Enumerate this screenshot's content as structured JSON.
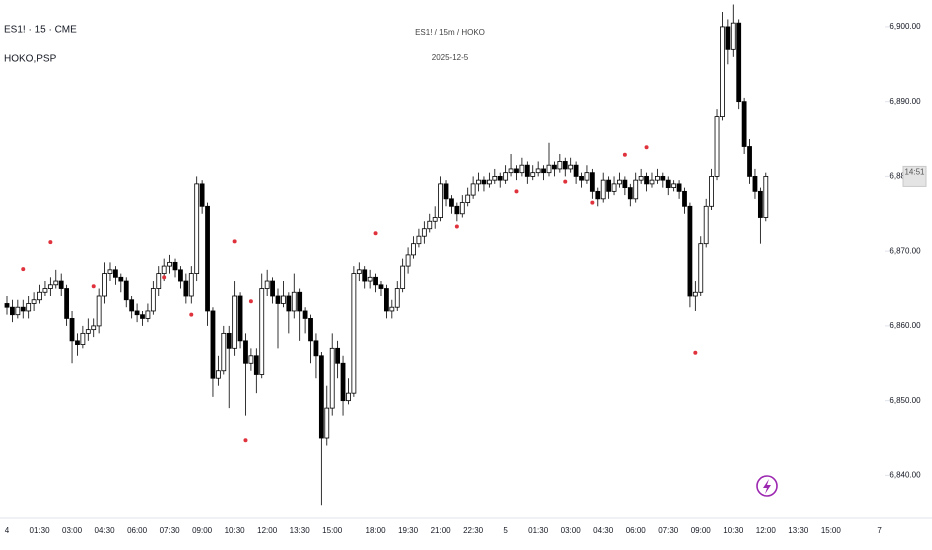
{
  "chart_data": {
    "type": "candlestick",
    "symbol": "ES1! · 15 · CME",
    "indicator": "HOKO,PSP",
    "title": "ES1! / 15m / HOKO",
    "subtitle": "2025-12-5",
    "countdown": "14:51",
    "ylim": [
      6834.3,
      6903.6
    ],
    "yticks": [
      {
        "value": 6840,
        "label": "6,840.00"
      },
      {
        "value": 6850,
        "label": "6,850.00"
      },
      {
        "value": 6860,
        "label": "6,860.00"
      },
      {
        "value": 6870,
        "label": "6,870.00"
      },
      {
        "value": 6880,
        "label": "6,880.00"
      },
      {
        "value": 6890,
        "label": "6,890.00"
      },
      {
        "value": 6900,
        "label": "6,900.00"
      }
    ],
    "categories": [
      "4",
      null,
      null,
      null,
      null,
      null,
      "01:30",
      null,
      null,
      null,
      null,
      null,
      "03:00",
      null,
      null,
      null,
      null,
      null,
      "04:30",
      null,
      null,
      null,
      null,
      null,
      "06:00",
      null,
      null,
      null,
      null,
      null,
      "07:30",
      null,
      null,
      null,
      null,
      null,
      "09:00",
      null,
      null,
      null,
      null,
      null,
      "10:30",
      null,
      null,
      null,
      null,
      null,
      "12:00",
      null,
      null,
      null,
      null,
      null,
      "13:30",
      null,
      null,
      null,
      null,
      null,
      "15:00",
      null,
      null,
      null,
      null,
      null,
      null,
      null,
      "18:00",
      null,
      null,
      null,
      null,
      null,
      "19:30",
      null,
      null,
      null,
      null,
      null,
      "21:00",
      null,
      null,
      null,
      null,
      null,
      "22:30",
      null,
      null,
      null,
      null,
      null,
      "5",
      null,
      null,
      null,
      null,
      null,
      "01:30",
      null,
      null,
      null,
      null,
      null,
      "03:00",
      null,
      null,
      null,
      null,
      null,
      "04:30",
      null,
      null,
      null,
      null,
      null,
      "06:00",
      null,
      null,
      null,
      null,
      null,
      "07:30",
      null,
      null,
      null,
      null,
      null,
      "09:00",
      null,
      null,
      null,
      null,
      null,
      "10:30",
      null,
      null,
      null,
      null,
      null,
      "12:00",
      null,
      null,
      null,
      null,
      null,
      "13:30",
      null,
      null,
      null,
      null,
      null,
      "15:00",
      null,
      null,
      null,
      null,
      null,
      null,
      null,
      null,
      "7"
    ],
    "up_color": "#ffffff",
    "down_color": "#000000",
    "edge_color": "#000000",
    "ohlc": [
      [
        6863,
        6864,
        6861.5,
        6862.5
      ],
      [
        6862.5,
        6863.5,
        6860.5,
        6861.5
      ],
      [
        6861.5,
        6863.5,
        6861,
        6862.5
      ],
      [
        6862.5,
        6863.5,
        6861,
        6862
      ],
      [
        6862,
        6864,
        6861,
        6863
      ],
      [
        6863,
        6864.5,
        6862,
        6863.5
      ],
      [
        6863.5,
        6865.5,
        6863,
        6864.5
      ],
      [
        6864.5,
        6866,
        6864,
        6865
      ],
      [
        6865,
        6866.5,
        6864,
        6865.5
      ],
      [
        6865.5,
        6867.5,
        6865,
        6866
      ],
      [
        6866,
        6867,
        6864,
        6865
      ],
      [
        6865,
        6865.5,
        6860,
        6861
      ],
      [
        6861,
        6862,
        6855,
        6858
      ],
      [
        6858,
        6859,
        6856,
        6857.5
      ],
      [
        6857.5,
        6860,
        6857,
        6859
      ],
      [
        6859,
        6861,
        6858,
        6859.5
      ],
      [
        6859.5,
        6861,
        6858.5,
        6860
      ],
      [
        6860,
        6865,
        6859,
        6864
      ],
      [
        6864,
        6868.5,
        6863,
        6867
      ],
      [
        6867,
        6868.5,
        6866,
        6867.5
      ],
      [
        6867.5,
        6868,
        6865.5,
        6866.5
      ],
      [
        6866.5,
        6867,
        6864.5,
        6866
      ],
      [
        6866,
        6866.5,
        6862.5,
        6863.5
      ],
      [
        6863.5,
        6864,
        6861,
        6862
      ],
      [
        6862,
        6863,
        6860.5,
        6861.5
      ],
      [
        6861.5,
        6862,
        6860,
        6861
      ],
      [
        6861,
        6863,
        6860.5,
        6862
      ],
      [
        6862,
        6866,
        6861.5,
        6865
      ],
      [
        6865,
        6868,
        6864,
        6867
      ],
      [
        6867,
        6869,
        6866,
        6868
      ],
      [
        6868,
        6869.5,
        6867,
        6868.5
      ],
      [
        6868.5,
        6869,
        6866.5,
        6867.5
      ],
      [
        6867.5,
        6868,
        6865,
        6866
      ],
      [
        6866,
        6867,
        6863,
        6864
      ],
      [
        6864,
        6868,
        6863,
        6867
      ],
      [
        6867,
        6880,
        6866,
        6879
      ],
      [
        6879,
        6879.5,
        6875,
        6876
      ],
      [
        6876,
        6876.5,
        6860,
        6862
      ],
      [
        6862,
        6862.5,
        6850.5,
        6853
      ],
      [
        6853,
        6856,
        6852,
        6854
      ],
      [
        6854,
        6860,
        6853.5,
        6859
      ],
      [
        6859,
        6860,
        6849,
        6857
      ],
      [
        6857,
        6866,
        6856,
        6864
      ],
      [
        6864,
        6864.5,
        6857,
        6858
      ],
      [
        6858,
        6859,
        6848,
        6855
      ],
      [
        6855,
        6857,
        6854,
        6856
      ],
      [
        6856,
        6857,
        6851,
        6853.5
      ],
      [
        6853.5,
        6867,
        6853,
        6865
      ],
      [
        6865,
        6867.5,
        6864,
        6866
      ],
      [
        6866,
        6866.5,
        6863,
        6864
      ],
      [
        6864,
        6865,
        6857,
        6863
      ],
      [
        6863,
        6866,
        6862.5,
        6864
      ],
      [
        6864,
        6864.5,
        6859,
        6862
      ],
      [
        6862,
        6867,
        6861,
        6864.5
      ],
      [
        6864.5,
        6865,
        6858,
        6862
      ],
      [
        6862,
        6862.5,
        6859,
        6861
      ],
      [
        6861,
        6861.5,
        6855,
        6858
      ],
      [
        6858,
        6859,
        6853,
        6856
      ],
      [
        6856,
        6856.5,
        6836,
        6845
      ],
      [
        6845,
        6852,
        6844,
        6849
      ],
      [
        6849,
        6859,
        6848,
        6857
      ],
      [
        6857,
        6858,
        6853,
        6855
      ],
      [
        6855,
        6856,
        6848,
        6850
      ],
      [
        6850,
        6853,
        6849.5,
        6851
      ],
      [
        6851,
        6868,
        6850.5,
        6867
      ],
      [
        6867,
        6868.5,
        6866,
        6867.5
      ],
      [
        6867.5,
        6868,
        6865,
        6866
      ],
      [
        6866,
        6867.5,
        6865,
        6866.5
      ],
      [
        6866.5,
        6867,
        6864.5,
        6865.5
      ],
      [
        6865.5,
        6866,
        6864,
        6865
      ],
      [
        6865,
        6865.5,
        6861,
        6862
      ],
      [
        6862,
        6863.5,
        6861,
        6862.5
      ],
      [
        6862.5,
        6866,
        6862,
        6865
      ],
      [
        6865,
        6869,
        6864.5,
        6868
      ],
      [
        6868,
        6870.5,
        6867,
        6869.5
      ],
      [
        6869.5,
        6872,
        6869,
        6871
      ],
      [
        6871,
        6873,
        6870.5,
        6872
      ],
      [
        6872,
        6874,
        6871,
        6873
      ],
      [
        6873,
        6875,
        6872.5,
        6874
      ],
      [
        6874,
        6876,
        6873,
        6874.5
      ],
      [
        6874.5,
        6880,
        6874,
        6879
      ],
      [
        6879,
        6879.5,
        6876,
        6877
      ],
      [
        6877,
        6877.5,
        6875,
        6876
      ],
      [
        6876,
        6876.5,
        6874,
        6875
      ],
      [
        6875,
        6877.5,
        6874.5,
        6876.5
      ],
      [
        6876.5,
        6878.5,
        6876,
        6877.5
      ],
      [
        6877.5,
        6880,
        6877,
        6879
      ],
      [
        6879,
        6880.5,
        6878,
        6879.5
      ],
      [
        6879.5,
        6880,
        6878,
        6879
      ],
      [
        6879,
        6880.5,
        6878.5,
        6879.5
      ],
      [
        6879.5,
        6881,
        6879,
        6880
      ],
      [
        6880,
        6880.5,
        6878.5,
        6879.5
      ],
      [
        6879.5,
        6881.5,
        6879,
        6880.5
      ],
      [
        6880.5,
        6883,
        6880,
        6881
      ],
      [
        6881,
        6881.5,
        6879.5,
        6880.5
      ],
      [
        6880.5,
        6882.5,
        6880,
        6881.5
      ],
      [
        6881.5,
        6882,
        6879,
        6880
      ],
      [
        6880,
        6881.5,
        6879.5,
        6880.5
      ],
      [
        6880.5,
        6882,
        6880,
        6881
      ],
      [
        6881,
        6881.5,
        6879.5,
        6880.5
      ],
      [
        6880.5,
        6884.5,
        6880,
        6881.5
      ],
      [
        6881.5,
        6882,
        6880,
        6881
      ],
      [
        6881,
        6883,
        6880.5,
        6882
      ],
      [
        6882,
        6882.5,
        6880,
        6881
      ],
      [
        6881,
        6882.5,
        6880.5,
        6881.5
      ],
      [
        6881.5,
        6882,
        6879,
        6880
      ],
      [
        6880,
        6880.5,
        6878.5,
        6879.5
      ],
      [
        6879.5,
        6881.5,
        6879,
        6880.5
      ],
      [
        6880.5,
        6881,
        6877,
        6878
      ],
      [
        6878,
        6878.5,
        6876,
        6877
      ],
      [
        6877,
        6880.5,
        6876.5,
        6879.5
      ],
      [
        6879.5,
        6880,
        6877,
        6878
      ],
      [
        6878,
        6880,
        6877.5,
        6879
      ],
      [
        6879,
        6880.5,
        6878.5,
        6879.5
      ],
      [
        6879.5,
        6880,
        6877.5,
        6878.5
      ],
      [
        6878.5,
        6879,
        6876,
        6877
      ],
      [
        6877,
        6880.5,
        6876.5,
        6879.5
      ],
      [
        6879.5,
        6881,
        6879,
        6880
      ],
      [
        6880,
        6880.5,
        6878,
        6879
      ],
      [
        6879,
        6880.5,
        6878.5,
        6879.5
      ],
      [
        6879.5,
        6881,
        6879,
        6880
      ],
      [
        6880,
        6880.5,
        6878.5,
        6879.5
      ],
      [
        6879.5,
        6880,
        6877.5,
        6878.5
      ],
      [
        6878.5,
        6879.5,
        6878,
        6879
      ],
      [
        6879,
        6879.5,
        6877,
        6878
      ],
      [
        6878,
        6878.5,
        6875,
        6876
      ],
      [
        6876,
        6876.5,
        6862.5,
        6864
      ],
      [
        6864,
        6866,
        6862,
        6864.5
      ],
      [
        6864.5,
        6872,
        6864,
        6871
      ],
      [
        6871,
        6877,
        6870.5,
        6876
      ],
      [
        6876,
        6881,
        6875.5,
        6880
      ],
      [
        6880,
        6889,
        6879.5,
        6888
      ],
      [
        6888,
        6902,
        6887.5,
        6900
      ],
      [
        6900,
        6901,
        6895,
        6897
      ],
      [
        6897,
        6903,
        6896,
        6900.5
      ],
      [
        6900.5,
        6901,
        6889,
        6890
      ],
      [
        6890,
        6890.5,
        6883,
        6884
      ],
      [
        6884,
        6885,
        6879,
        6880
      ],
      [
        6880,
        6881,
        6877,
        6878
      ],
      [
        6878,
        6878.5,
        6871,
        6874.5
      ],
      [
        6874.5,
        6880.5,
        6874,
        6880
      ]
    ],
    "psp_markers": {
      "color": "#e0323c",
      "x": [
        3,
        8,
        16,
        29,
        34,
        42,
        45,
        44,
        68,
        83,
        94,
        103,
        108,
        114,
        118,
        127
      ],
      "values": [
        6867.6,
        6871.2,
        6865.3,
        6866.5,
        6861.5,
        6871.3,
        6863.3,
        6844.7,
        6872.4,
        6873.3,
        6878,
        6879.3,
        6876.5,
        6882.9,
        6883.9,
        6856.4
      ]
    }
  }
}
